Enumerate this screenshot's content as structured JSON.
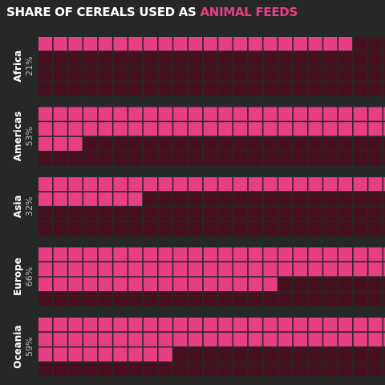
{
  "title": {
    "prefix": "SHARE OF CEREALS USED AS ",
    "highlight": "ANIMAL FEEDS"
  },
  "colors": {
    "background": "#262827",
    "filled": "#e83f84",
    "empty": "#46101f"
  },
  "chart_data": {
    "type": "waffle",
    "grid": {
      "columns": 25,
      "rows": 4,
      "cells_per_unit_percent": 1
    },
    "categories": [
      "Africa",
      "Americas",
      "Asia",
      "Europe",
      "Oceania"
    ],
    "values": [
      21,
      53,
      32,
      66,
      59
    ],
    "value_labels": [
      "21%",
      "53%",
      "32%",
      "66%",
      "59%"
    ],
    "unit": "%"
  }
}
